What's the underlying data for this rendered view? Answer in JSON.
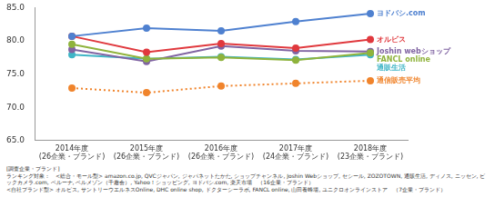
{
  "chart_data": {
    "type": "line",
    "categories": [
      "2014年度\n(26企業・ブランド)",
      "2015年度\n(26企業・ブランド)",
      "2016年度\n(26企業・ブランド)",
      "2017年度\n(24企業・ブランド)",
      "2018年度\n(23企業・ブランド)"
    ],
    "series": [
      {
        "name": "ヨドバシ.com",
        "color": "#4f81d0",
        "values": [
          80.7,
          81.9,
          81.5,
          82.9,
          84.1
        ],
        "marker": "circle",
        "line_style": "solid"
      },
      {
        "name": "オルビス",
        "color": "#e0393e",
        "values": [
          80.7,
          78.3,
          79.6,
          78.9,
          80.2
        ],
        "marker": "circle",
        "line_style": "solid"
      },
      {
        "name": "FANCL online",
        "color": "#8fb33c",
        "values": [
          79.5,
          77.3,
          77.5,
          77.1,
          78.2
        ],
        "marker": "circle",
        "line_style": "solid"
      },
      {
        "name": "Joshin webショップ",
        "color": "#8064a2",
        "values": [
          78.7,
          76.9,
          79.2,
          78.5,
          78.4
        ],
        "marker": "circle",
        "line_style": "solid"
      },
      {
        "name": "通販生活",
        "color": "#3fb5c6",
        "values": [
          77.9,
          77.3,
          77.6,
          77.2,
          77.9
        ],
        "marker": "circle",
        "line_style": "solid"
      },
      {
        "name": "通信販売平均",
        "color": "#f0842c",
        "values": [
          72.9,
          72.2,
          73.2,
          73.6,
          74.0
        ],
        "marker": "circle",
        "line_style": "dotted"
      }
    ],
    "ylim": [
      65,
      85
    ],
    "yticks": [
      {
        "value": 65,
        "label": "65.0"
      },
      {
        "value": 70,
        "label": "70.0"
      },
      {
        "value": 75,
        "label": "75.0"
      },
      {
        "value": 80,
        "label": "80.0"
      },
      {
        "value": 85,
        "label": "85.0"
      }
    ],
    "grid": false,
    "footnotes": [
      "[調査企業・ブランド]",
      "ランキング対象：　<総合・モール型> amazon.co.jp, QVCジャパン, ジャパネットたかた, ショップチャンネル, Joshin Webショップ, セシール, ZOZOTOWN, 通販生活, ディノス, ニッセン, ビックカメラ.com, ベルーナ, ベルメゾン（千趣会）, Yahoo！ショッピング, ヨドバシ.com, 楽天市場　（16企業・ブランド）",
      "<自社ブランド型> オルビス, サントリーウエルネスOnline, DHC online shop, ドクターシーラボ, FANCL online, 山田養蜂場, ユニクロオンラインストア　（7企業・ブランド）"
    ]
  }
}
